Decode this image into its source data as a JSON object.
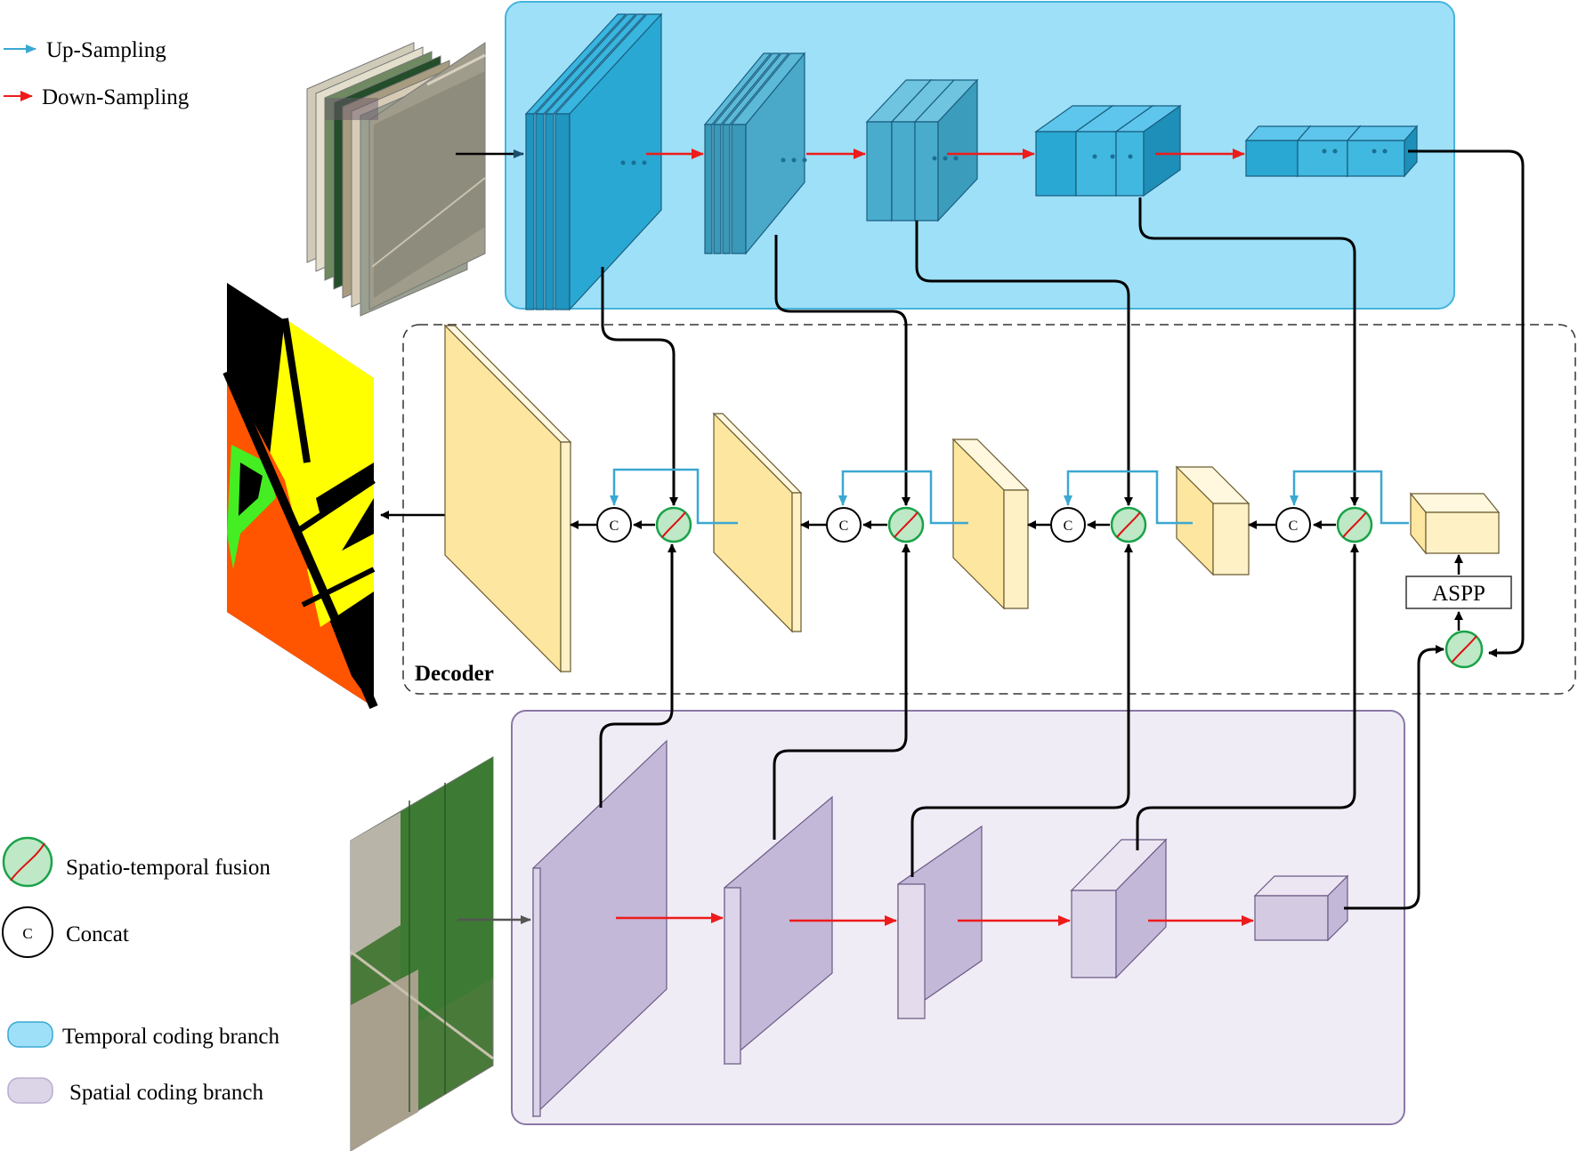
{
  "legend": {
    "up_sampling": "Up-Sampling",
    "down_sampling": "Down-Sampling",
    "fusion": "Spatio-temporal fusion",
    "concat": "Concat",
    "temporal_branch": "Temporal coding branch",
    "spatial_branch": "Spatial coding branch"
  },
  "decoder_label": "Decoder",
  "aspp_label": "ASPP",
  "concat_symbol": "C",
  "colors": {
    "temporal_bg": "#9ee0f8",
    "temporal_block": "#29a8d3",
    "spatial_bg": "#f0ecf5",
    "spatial_block": "#c4b8d8",
    "decoder_block": "#fde6a0",
    "fusion_fill": "#bfe8c6",
    "fusion_stroke": "#1aa34a",
    "up_arrow": "#3aa8d1",
    "down_arrow": "#ee1b1b",
    "seg_black": "#000000",
    "seg_yellow": "#ffff00",
    "seg_orange": "#ff5500",
    "seg_green": "#44ee22"
  }
}
